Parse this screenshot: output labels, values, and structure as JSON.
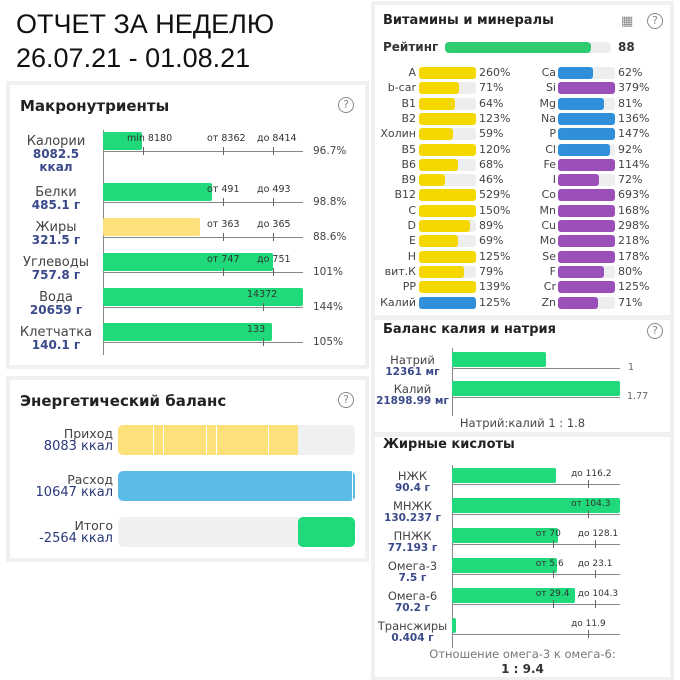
{
  "header": {
    "title": "ОТЧЕТ ЗА НЕДЕЛЮ",
    "dates": "26.07.21 - 01.08.21"
  },
  "macro": {
    "title": "Макронутриенты",
    "rows": [
      {
        "name": "Калории",
        "value": "8082.5",
        "unit": "ккал",
        "pct": "96.7%",
        "fill": 0.195,
        "color": "#1fd97a",
        "ticks": [
          {
            "label": "min 8180",
            "pos": 0.2
          },
          {
            "label": "от 8362",
            "pos": 0.6
          },
          {
            "label": "до 8414",
            "pos": 0.85
          }
        ]
      },
      {
        "name": "Белки",
        "value": "485.1 г",
        "pct": "98.8%",
        "fill": 0.545,
        "color": "#1fd97a",
        "ticks": [
          {
            "label": "от 491",
            "pos": 0.6
          },
          {
            "label": "до 493",
            "pos": 0.85
          }
        ]
      },
      {
        "name": "Жиры",
        "value": "321.5 г",
        "pct": "88.6%",
        "fill": 0.485,
        "color": "#fde07a",
        "ticks": [
          {
            "label": "от 363",
            "pos": 0.6
          },
          {
            "label": "до 365",
            "pos": 0.85
          }
        ]
      },
      {
        "name": "Углеводы",
        "value": "757.8 г",
        "pct": "101%",
        "fill": 0.85,
        "color": "#1fd97a",
        "ticks": [
          {
            "label": "от 747",
            "pos": 0.6
          },
          {
            "label": "до 751",
            "pos": 0.85
          }
        ]
      },
      {
        "name": "Вода",
        "value": "20659 г",
        "pct": "144%",
        "fill": 1,
        "color": "#1fd97a",
        "ticks": [
          {
            "label": "14372",
            "pos": 0.8
          }
        ]
      },
      {
        "name": "Клетчатка",
        "value": "140.1 г",
        "pct": "105%",
        "fill": 0.845,
        "color": "#1fd97a",
        "ticks": [
          {
            "label": "133",
            "pos": 0.8
          }
        ]
      }
    ]
  },
  "energy": {
    "title": "Энергетический баланс",
    "rows": [
      {
        "name": "Приход",
        "value": "8083 ккал",
        "fill": 0.76,
        "color": "#fde07a"
      },
      {
        "name": "Расход",
        "value": "10647 ккал",
        "fill": 1,
        "color": "#5bbce8"
      },
      {
        "name": "Итого",
        "value": "-2564 ккал",
        "fill": 0.24,
        "color": "#1fd97a",
        "right": true
      }
    ]
  },
  "vitamins": {
    "title": "Витамины и минералы",
    "rating_label": "Рейтинг",
    "rating": 88,
    "left": [
      [
        "A",
        "260%",
        1,
        "#f5d800"
      ],
      [
        "b-car",
        "71%",
        0.71,
        "#f5d800"
      ],
      [
        "B1",
        "64%",
        0.64,
        "#f5d800"
      ],
      [
        "B2",
        "123%",
        1,
        "#f5d800"
      ],
      [
        "Холин",
        "59%",
        0.59,
        "#f5d800"
      ],
      [
        "B5",
        "120%",
        1,
        "#f5d800"
      ],
      [
        "B6",
        "68%",
        0.68,
        "#f5d800"
      ],
      [
        "B9",
        "46%",
        0.46,
        "#f5d800"
      ],
      [
        "B12",
        "529%",
        1,
        "#f5d800"
      ],
      [
        "C",
        "150%",
        1,
        "#f5d800"
      ],
      [
        "D",
        "89%",
        0.89,
        "#f5d800"
      ],
      [
        "E",
        "69%",
        0.69,
        "#f5d800"
      ],
      [
        "H",
        "125%",
        1,
        "#f5d800"
      ],
      [
        "вит.К",
        "79%",
        0.79,
        "#f5d800"
      ],
      [
        "PP",
        "139%",
        1,
        "#f5d800"
      ],
      [
        "Калий",
        "125%",
        1,
        "#2f8fd8"
      ]
    ],
    "right": [
      [
        "Ca",
        "62%",
        0.62,
        "#2f8fd8"
      ],
      [
        "Si",
        "379%",
        1,
        "#9b4fb8"
      ],
      [
        "Mg",
        "81%",
        0.81,
        "#2f8fd8"
      ],
      [
        "Na",
        "136%",
        1,
        "#2f8fd8"
      ],
      [
        "P",
        "147%",
        1,
        "#2f8fd8"
      ],
      [
        "Cl",
        "92%",
        0.92,
        "#2f8fd8"
      ],
      [
        "Fe",
        "114%",
        1,
        "#9b4fb8"
      ],
      [
        "I",
        "72%",
        0.72,
        "#9b4fb8"
      ],
      [
        "Co",
        "693%",
        1,
        "#9b4fb8"
      ],
      [
        "Mn",
        "168%",
        1,
        "#9b4fb8"
      ],
      [
        "Cu",
        "298%",
        1,
        "#9b4fb8"
      ],
      [
        "Mo",
        "218%",
        1,
        "#9b4fb8"
      ],
      [
        "Se",
        "178%",
        1,
        "#9b4fb8"
      ],
      [
        "F",
        "80%",
        0.8,
        "#9b4fb8"
      ],
      [
        "Cr",
        "125%",
        1,
        "#9b4fb8"
      ],
      [
        "Zn",
        "71%",
        0.71,
        "#9b4fb8"
      ]
    ]
  },
  "kna": {
    "title": "Баланс калия и натрия",
    "rows": [
      {
        "name": "Натрий",
        "value": "12361 мг",
        "ratio": "1",
        "fill": 0.56
      },
      {
        "name": "Калий",
        "value": "21898.99 мг",
        "ratio": "1.77",
        "fill": 1
      }
    ],
    "summary": "Натрий:калий 1 : 1.8"
  },
  "fats": {
    "title": "Жирные кислоты",
    "rows": [
      {
        "name": "НЖК",
        "value": "90.4 г",
        "fill": 0.62,
        "ticks": [
          {
            "label": "до 116.2",
            "pos": 0.81
          }
        ]
      },
      {
        "name": "МНЖК",
        "value": "130.237 г",
        "fill": 1,
        "ticks": [
          {
            "label": "от 104.3",
            "pos": 0.81
          }
        ]
      },
      {
        "name": "ПНЖК",
        "value": "77.193 г",
        "fill": 0.63,
        "ticks": [
          {
            "label": "от 70",
            "pos": 0.6
          },
          {
            "label": "до 128.1",
            "pos": 0.85
          }
        ]
      },
      {
        "name": "Омега-3",
        "value": "7.5 г",
        "fill": 0.625,
        "ticks": [
          {
            "label": "от 5.6",
            "pos": 0.6
          },
          {
            "label": "до 23.1",
            "pos": 0.85
          }
        ]
      },
      {
        "name": "Омега-6",
        "value": "70.2 г",
        "fill": 0.735,
        "ticks": [
          {
            "label": "от 29.4",
            "pos": 0.6
          },
          {
            "label": "до 104.3",
            "pos": 0.85
          }
        ]
      },
      {
        "name": "Трансжиры",
        "value": "0.404 г",
        "fill": 0.025,
        "ticks": [
          {
            "label": "до 11.9",
            "pos": 0.81
          }
        ]
      }
    ],
    "summary_label": "Отношение омега-3 к омега-6:",
    "summary_value": "1 : 9.4"
  }
}
